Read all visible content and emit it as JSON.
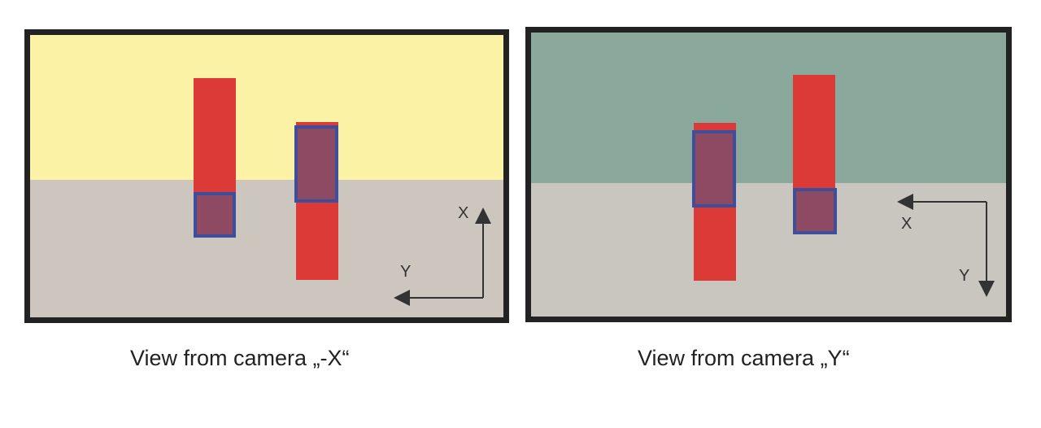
{
  "panels": [
    {
      "caption": "View from camera „-X“",
      "axis_vertical_label": "X",
      "axis_horizontal_label": "Y",
      "colors": {
        "upper": "#fbf2a6",
        "lower": "#cdc6bf"
      }
    },
    {
      "caption": "View from camera „Y“",
      "axis_horizontal_label": "X",
      "axis_vertical_label": "Y",
      "colors": {
        "upper": "#8aa89b",
        "lower": "#c9c5bf"
      }
    }
  ],
  "colors": {
    "rod": "#dc3a36",
    "highlight_fill": "#8f4a63",
    "highlight_border": "#3e4e9a",
    "frame": "#222222"
  }
}
